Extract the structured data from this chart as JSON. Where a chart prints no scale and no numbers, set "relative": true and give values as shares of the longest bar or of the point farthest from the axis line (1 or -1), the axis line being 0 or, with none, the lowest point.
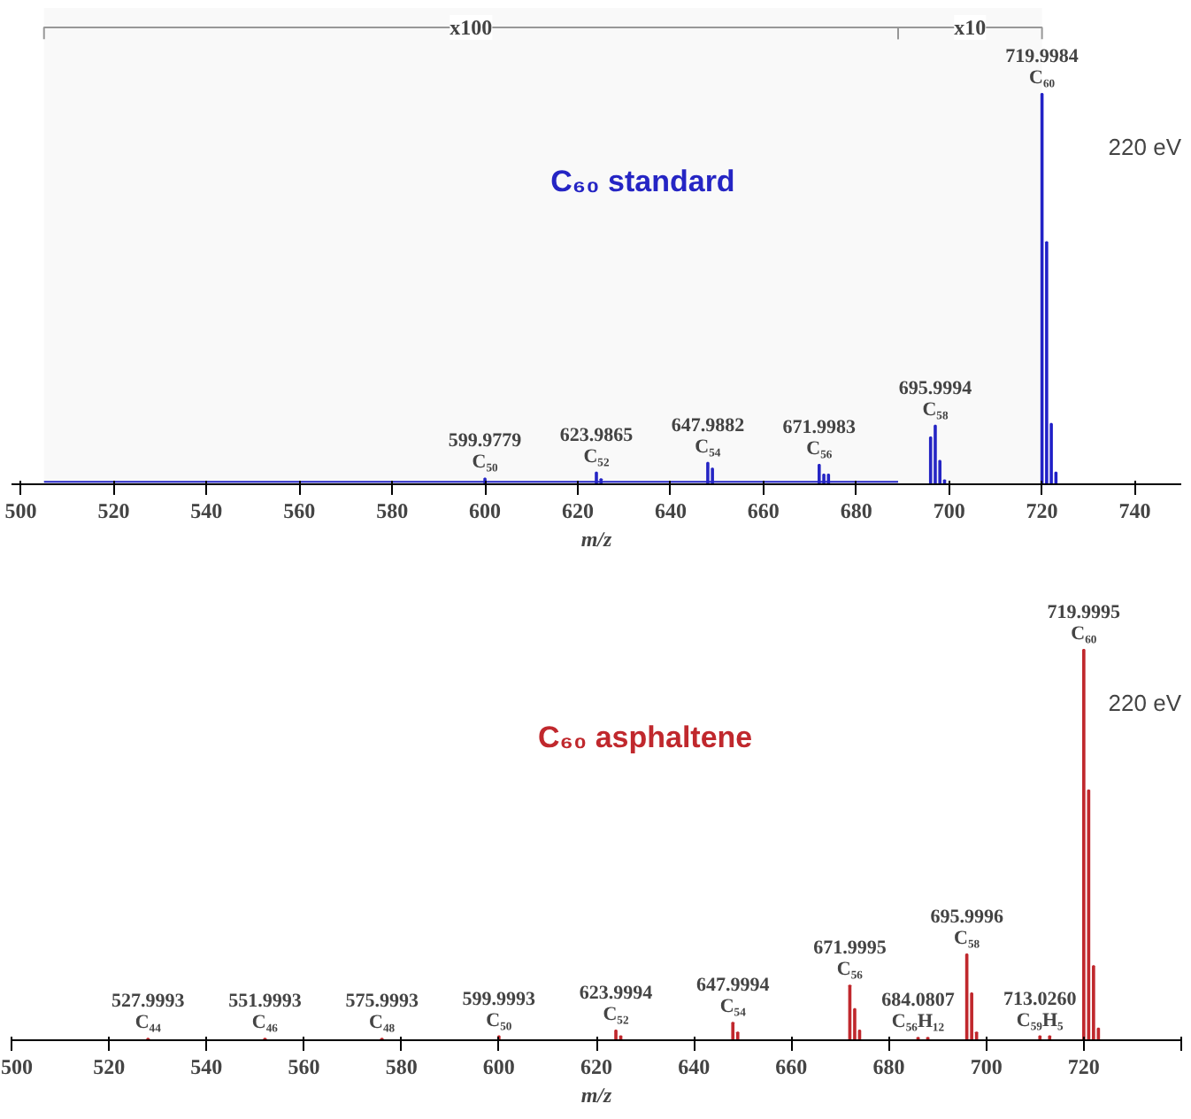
{
  "chart_data": [
    {
      "type": "bar",
      "title": "C₆₀ standard",
      "xlabel": "m/z",
      "relative": true,
      "xlim": [
        498,
        750
      ],
      "xticks": [
        500,
        520,
        540,
        560,
        580,
        600,
        620,
        640,
        660,
        680,
        700,
        720,
        740
      ],
      "grid": false,
      "series": [
        {
          "type": "line",
          "color": "#2020c8",
          "x": [
            505,
            689
          ],
          "values": [
            0.006,
            0.006
          ]
        },
        {
          "color": "#2020c8",
          "x": [
            600,
            624,
            625,
            648,
            649,
            672,
            673,
            674,
            696,
            697,
            698,
            699,
            720,
            721,
            722,
            723
          ],
          "values": [
            0.015,
            0.03,
            0.013,
            0.055,
            0.04,
            0.05,
            0.025,
            0.025,
            0.12,
            0.15,
            0.06,
            0.01,
            1.0,
            0.62,
            0.155,
            0.03
          ]
        }
      ],
      "bands": [
        {
          "axis": "x",
          "from": 505,
          "to": 689,
          "label": "x100"
        },
        {
          "axis": "x",
          "from": 689,
          "to": 720,
          "label": "x10"
        }
      ],
      "annotations": [
        {
          "text": "599.9779\nC₅₀",
          "x": 600,
          "y": 0.015
        },
        {
          "text": "623.9865\nC₅₂",
          "x": 624,
          "y": 0.03
        },
        {
          "text": "647.9882\nC₅₄",
          "x": 648,
          "y": 0.055
        },
        {
          "text": "671.9983\nC₅₆",
          "x": 672,
          "y": 0.05
        },
        {
          "text": "695.9994\nC₅₈",
          "x": 697,
          "y": 0.15
        },
        {
          "text": "719.9984\nC₆₀",
          "x": 720,
          "y": 1.0
        },
        "220 eV"
      ]
    },
    {
      "type": "bar",
      "title": "C₆₀ asphaltene",
      "xlabel": "m/z",
      "relative": true,
      "xlim": [
        500,
        740
      ],
      "xticks": [
        500,
        520,
        540,
        560,
        580,
        600,
        620,
        640,
        660,
        680,
        700,
        720,
        {
          "value": 740,
          "label": null
        }
      ],
      "grid": false,
      "series": [
        {
          "color": "#c0282d",
          "x": [
            528,
            552,
            576,
            600,
            624,
            625,
            648,
            649,
            672,
            673,
            674,
            686,
            688,
            696,
            697,
            698,
            711,
            713,
            720,
            721,
            722,
            723
          ],
          "values": [
            0.004,
            0.004,
            0.004,
            0.01,
            0.025,
            0.01,
            0.045,
            0.02,
            0.14,
            0.08,
            0.025,
            0.006,
            0.006,
            0.22,
            0.12,
            0.02,
            0.01,
            0.01,
            1.0,
            0.64,
            0.19,
            0.03
          ]
        }
      ],
      "annotations": [
        {
          "text": "527.9993\nC₄₄",
          "x": 528,
          "y": 0.004
        },
        {
          "text": "551.9993\nC₄₆",
          "x": 552,
          "y": 0.004
        },
        {
          "text": "575.9993\nC₄₈",
          "x": 576,
          "y": 0.004
        },
        {
          "text": "599.9993\nC₅₀",
          "x": 600,
          "y": 0.01
        },
        {
          "text": "623.9994\nC₅₂",
          "x": 624,
          "y": 0.025
        },
        {
          "text": "647.9994\nC₅₄",
          "x": 648,
          "y": 0.045
        },
        {
          "text": "671.9995\nC₅₆",
          "x": 672,
          "y": 0.14
        },
        {
          "text": "684.0807\nC₅₆H₁₂",
          "x": 686,
          "y": 0.006
        },
        {
          "text": "695.9996\nC₅₈",
          "x": 696,
          "y": 0.22
        },
        {
          "text": "713.0260\nC₅₉H₅",
          "x": 711,
          "y": 0.01
        },
        {
          "text": "719.9995\nC₆₀",
          "x": 720,
          "y": 1.0
        },
        "220 eV"
      ]
    }
  ]
}
